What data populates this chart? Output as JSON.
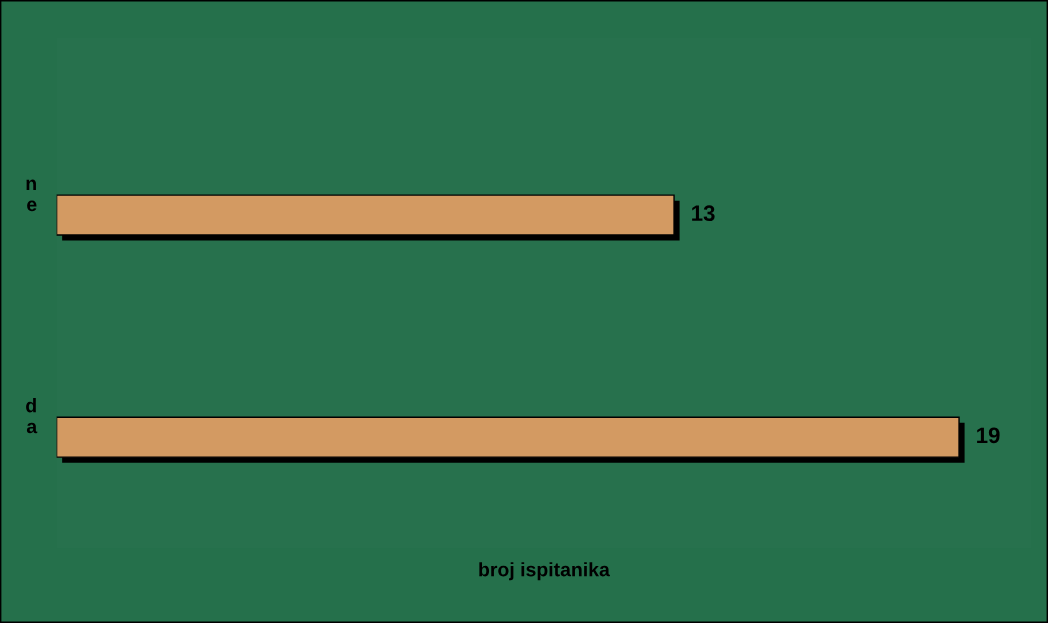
{
  "chart_data": {
    "type": "bar",
    "orientation": "horizontal",
    "xlabel": "broj ispitanika",
    "categories": [
      "ne",
      "da"
    ],
    "values": [
      13,
      19
    ],
    "color": "#d39a62",
    "data_labels": true,
    "grid": false,
    "legend": false
  }
}
